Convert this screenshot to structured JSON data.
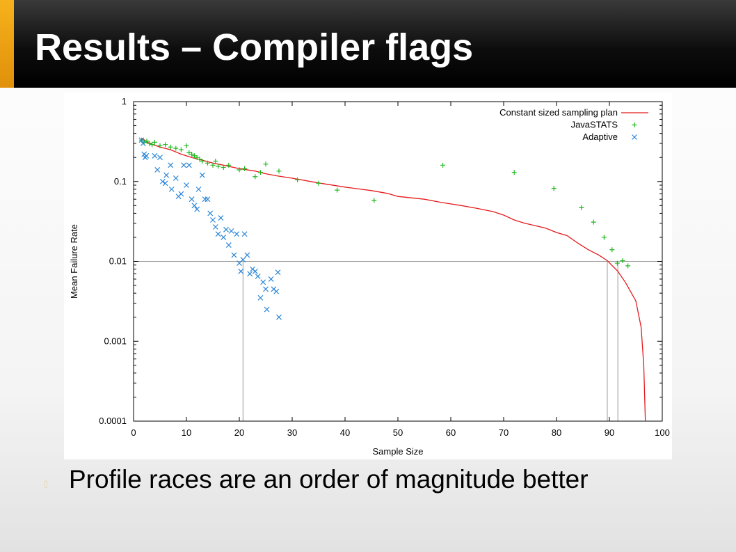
{
  "slide": {
    "title": "Results – Compiler flags",
    "bullet_icon": "bullet-square-icon",
    "bullet": "Profile races are an order of magnitude better"
  },
  "chart_data": {
    "type": "scatter",
    "xlabel": "Sample Size",
    "ylabel": "Mean Failure Rate",
    "xlim": [
      0,
      100
    ],
    "ylim": [
      0.0001,
      1
    ],
    "y_scale": "log",
    "x_ticks": [
      0,
      10,
      20,
      30,
      40,
      50,
      60,
      70,
      80,
      90,
      100
    ],
    "y_ticks": [
      {
        "value": 0.0001,
        "label": "0.0001"
      },
      {
        "value": 0.001,
        "label": "0.001"
      },
      {
        "value": 0.01,
        "label": "0.01"
      },
      {
        "value": 0.1,
        "label": "0.1"
      },
      {
        "value": 1,
        "label": "1"
      }
    ],
    "grid": false,
    "legend_position": "top-right",
    "reference_lines": {
      "horizontal": [
        0.01
      ],
      "vertical": [
        20.7,
        89.6,
        91.6
      ]
    },
    "series": [
      {
        "name": "Constant sized sampling plan",
        "kind": "line",
        "color": "#e41a1c",
        "points": [
          [
            1.5,
            0.35
          ],
          [
            3,
            0.3
          ],
          [
            5,
            0.27
          ],
          [
            7,
            0.25
          ],
          [
            9,
            0.22
          ],
          [
            11,
            0.2
          ],
          [
            13,
            0.185
          ],
          [
            15,
            0.17
          ],
          [
            17,
            0.16
          ],
          [
            20,
            0.145
          ],
          [
            23,
            0.135
          ],
          [
            25,
            0.125
          ],
          [
            27,
            0.118
          ],
          [
            30,
            0.11
          ],
          [
            35,
            0.096
          ],
          [
            40,
            0.085
          ],
          [
            45,
            0.077
          ],
          [
            48,
            0.071
          ],
          [
            50,
            0.065
          ],
          [
            55,
            0.06
          ],
          [
            58,
            0.055
          ],
          [
            62,
            0.05
          ],
          [
            65,
            0.046
          ],
          [
            68,
            0.042
          ],
          [
            70,
            0.038
          ],
          [
            72,
            0.033
          ],
          [
            74,
            0.03
          ],
          [
            76,
            0.028
          ],
          [
            78,
            0.026
          ],
          [
            80,
            0.023
          ],
          [
            82,
            0.021
          ],
          [
            84,
            0.017
          ],
          [
            86,
            0.014
          ],
          [
            88,
            0.012
          ],
          [
            89.6,
            0.0102
          ],
          [
            91.6,
            0.0075
          ],
          [
            93,
            0.0055
          ],
          [
            94,
            0.0042
          ],
          [
            95,
            0.0032
          ],
          [
            96,
            0.0015
          ],
          [
            96.5,
            0.0005
          ],
          [
            96.8,
            0.0001
          ]
        ]
      },
      {
        "name": "JavaSTATS",
        "kind": "plus",
        "color": "#1fb81f",
        "points": [
          [
            1.5,
            0.33
          ],
          [
            2,
            0.31
          ],
          [
            2.5,
            0.32
          ],
          [
            3,
            0.3
          ],
          [
            3.5,
            0.29
          ],
          [
            4,
            0.31
          ],
          [
            5,
            0.28
          ],
          [
            6,
            0.29
          ],
          [
            7,
            0.27
          ],
          [
            8,
            0.26
          ],
          [
            9,
            0.25
          ],
          [
            10,
            0.28
          ],
          [
            10.5,
            0.23
          ],
          [
            11,
            0.22
          ],
          [
            11.5,
            0.21
          ],
          [
            12,
            0.2
          ],
          [
            12.5,
            0.19
          ],
          [
            13,
            0.18
          ],
          [
            14,
            0.17
          ],
          [
            15,
            0.16
          ],
          [
            15.5,
            0.18
          ],
          [
            16,
            0.155
          ],
          [
            17,
            0.15
          ],
          [
            18,
            0.16
          ],
          [
            20,
            0.14
          ],
          [
            21,
            0.145
          ],
          [
            23,
            0.115
          ],
          [
            24,
            0.13
          ],
          [
            25,
            0.165
          ],
          [
            27.5,
            0.135
          ],
          [
            31,
            0.105
          ],
          [
            35,
            0.095
          ],
          [
            38.5,
            0.078
          ],
          [
            45.5,
            0.058
          ],
          [
            58.5,
            0.16
          ],
          [
            72,
            0.13
          ],
          [
            79.5,
            0.082
          ],
          [
            84.7,
            0.047
          ],
          [
            87,
            0.031
          ],
          [
            89,
            0.02
          ],
          [
            90.5,
            0.014
          ],
          [
            91.5,
            0.0095
          ],
          [
            92.5,
            0.0102
          ],
          [
            93.5,
            0.0088
          ]
        ]
      },
      {
        "name": "Adaptive",
        "kind": "cross",
        "color": "#2a85d8",
        "points": [
          [
            1.5,
            0.33
          ],
          [
            1.8,
            0.3
          ],
          [
            2,
            0.22
          ],
          [
            2.2,
            0.2
          ],
          [
            2.4,
            0.21
          ],
          [
            4,
            0.21
          ],
          [
            4.5,
            0.14
          ],
          [
            5,
            0.2
          ],
          [
            5.5,
            0.1
          ],
          [
            6,
            0.095
          ],
          [
            6.2,
            0.12
          ],
          [
            7,
            0.16
          ],
          [
            7.2,
            0.08
          ],
          [
            8,
            0.11
          ],
          [
            8.5,
            0.065
          ],
          [
            9,
            0.07
          ],
          [
            9.5,
            0.16
          ],
          [
            10,
            0.09
          ],
          [
            10.5,
            0.16
          ],
          [
            11,
            0.06
          ],
          [
            11.5,
            0.05
          ],
          [
            12,
            0.045
          ],
          [
            12.3,
            0.08
          ],
          [
            13,
            0.12
          ],
          [
            13.5,
            0.06
          ],
          [
            14,
            0.06
          ],
          [
            14.5,
            0.04
          ],
          [
            15,
            0.033
          ],
          [
            15.5,
            0.027
          ],
          [
            16,
            0.022
          ],
          [
            16.5,
            0.035
          ],
          [
            17,
            0.02
          ],
          [
            17.5,
            0.025
          ],
          [
            18,
            0.016
          ],
          [
            18.5,
            0.024
          ],
          [
            19,
            0.012
          ],
          [
            19.5,
            0.022
          ],
          [
            20,
            0.0095
          ],
          [
            20.3,
            0.0075
          ],
          [
            20.7,
            0.0105
          ],
          [
            21,
            0.022
          ],
          [
            21.5,
            0.012
          ],
          [
            22,
            0.007
          ],
          [
            22.5,
            0.008
          ],
          [
            23,
            0.0075
          ],
          [
            23.5,
            0.0065
          ],
          [
            24,
            0.0035
          ],
          [
            24.5,
            0.0055
          ],
          [
            25,
            0.0045
          ],
          [
            25.2,
            0.0025
          ],
          [
            26,
            0.006
          ],
          [
            26.5,
            0.0045
          ],
          [
            27,
            0.0042
          ],
          [
            27.3,
            0.0073
          ],
          [
            27.5,
            0.002
          ]
        ]
      }
    ]
  }
}
